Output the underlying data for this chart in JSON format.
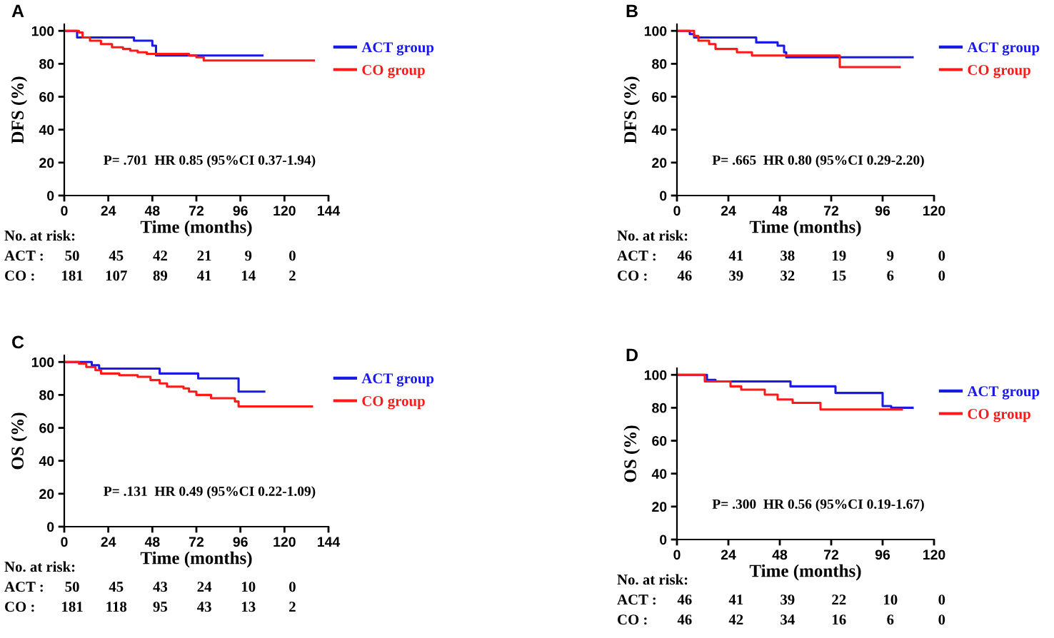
{
  "chart_data": [
    {
      "type": "step",
      "title": "A",
      "xlabel": "Time (months)",
      "ylabel": "DFS (%)",
      "xlim": [
        0,
        144
      ],
      "xticks": [
        0,
        24,
        48,
        72,
        96,
        120,
        144
      ],
      "ylim": [
        0,
        104
      ],
      "yticks": [
        0,
        20,
        40,
        60,
        80,
        100
      ],
      "grid": false,
      "legend": "right",
      "marker": "none",
      "line_style": "solid",
      "series": [
        {
          "name": "ACT group",
          "color": "#1a1ae6",
          "x": [
            0,
            7,
            38,
            48,
            50,
            108
          ],
          "values": [
            100,
            96,
            94,
            91,
            85,
            85
          ]
        },
        {
          "name": "CO group",
          "color": "#ff1a1a",
          "x": [
            0,
            8,
            10,
            14,
            20,
            26,
            32,
            36,
            40,
            45,
            68,
            72,
            76,
            136
          ],
          "values": [
            100,
            99,
            96,
            94,
            92,
            90,
            89,
            88,
            87,
            86,
            85,
            84,
            82,
            82
          ]
        }
      ],
      "annotations": [
        "P= .701  HR 0.85 (95%CI 0.37-1.94)",
        "No. at risk:",
        "ACT :  50  45  42  21  9  0",
        "CO :  181  107  89  41  14  2"
      ]
    },
    {
      "type": "step",
      "title": "B",
      "xlabel": "Time (months)",
      "ylabel": "DFS (%)",
      "xlim": [
        0,
        120
      ],
      "xticks": [
        0,
        24,
        48,
        72,
        96,
        120
      ],
      "ylim": [
        0,
        104
      ],
      "yticks": [
        0,
        20,
        40,
        60,
        80,
        100
      ],
      "grid": false,
      "legend": "right",
      "marker": "none",
      "line_style": "solid",
      "series": [
        {
          "name": "ACT group",
          "color": "#1a1ae6",
          "x": [
            0,
            6,
            8,
            37,
            47,
            50,
            51,
            110
          ],
          "values": [
            100,
            98,
            96,
            93,
            91,
            87,
            84,
            84
          ]
        },
        {
          "name": "CO group",
          "color": "#ff1a1a",
          "x": [
            0,
            8,
            10,
            15,
            18,
            28,
            35,
            76,
            104
          ],
          "values": [
            100,
            97,
            94,
            92,
            89,
            87,
            85,
            78,
            78
          ]
        }
      ],
      "annotations": [
        "P= .665  HR 0.80 (95%CI 0.29-2.20)",
        "No. at risk:",
        "ACT :  46  41  38  19  9  0",
        "CO :  46  39  32  15  6  0"
      ]
    },
    {
      "type": "step",
      "title": "C",
      "xlabel": "Time (months)",
      "ylabel": "OS (%)",
      "xlim": [
        0,
        144
      ],
      "xticks": [
        0,
        24,
        48,
        72,
        96,
        120,
        144
      ],
      "ylim": [
        0,
        104
      ],
      "yticks": [
        0,
        20,
        40,
        60,
        80,
        100
      ],
      "grid": false,
      "legend": "right",
      "marker": "none",
      "line_style": "solid",
      "series": [
        {
          "name": "ACT group",
          "color": "#1a1ae6",
          "x": [
            0,
            15,
            19,
            52,
            73,
            95,
            109
          ],
          "values": [
            100,
            98,
            96,
            93,
            90,
            82,
            82
          ]
        },
        {
          "name": "CO group",
          "color": "#ff1a1a",
          "x": [
            0,
            8,
            12,
            17,
            20,
            30,
            40,
            47,
            52,
            56,
            65,
            68,
            72,
            80,
            93,
            95,
            135
          ],
          "values": [
            100,
            99,
            97,
            95,
            93,
            92,
            91,
            89,
            87,
            85,
            84,
            82,
            80,
            78,
            76,
            73,
            73
          ]
        }
      ],
      "annotations": [
        "P= .131  HR 0.49 (95%CI 0.22-1.09)",
        "No. at risk:",
        "ACT :  50  45  43  24  10  0",
        "CO :  181  118  95  43  13  2"
      ]
    },
    {
      "type": "step",
      "title": "D",
      "xlabel": "Time (months)",
      "ylabel": "OS (%)",
      "xlim": [
        0,
        120
      ],
      "xticks": [
        0,
        24,
        48,
        72,
        96,
        120
      ],
      "ylim": [
        0,
        104
      ],
      "yticks": [
        0,
        20,
        40,
        60,
        80,
        100
      ],
      "grid": false,
      "legend": "right",
      "marker": "none",
      "line_style": "solid",
      "series": [
        {
          "name": "ACT group",
          "color": "#1a1ae6",
          "x": [
            0,
            14,
            18,
            53,
            74,
            96,
            100,
            110
          ],
          "values": [
            100,
            97,
            96,
            93,
            89,
            81,
            80,
            80
          ]
        },
        {
          "name": "CO group",
          "color": "#ff1a1a",
          "x": [
            0,
            13,
            25,
            30,
            41,
            47,
            54,
            67,
            105
          ],
          "values": [
            100,
            96,
            93,
            91,
            88,
            85,
            83,
            79,
            79
          ]
        }
      ],
      "annotations": [
        "P= .300  HR 0.56 (95%CI 0.19-1.67)",
        "No. at risk:",
        "ACT :  46  41  39  22  10  0",
        "CO :  46  42  34  16  6  0"
      ]
    }
  ]
}
